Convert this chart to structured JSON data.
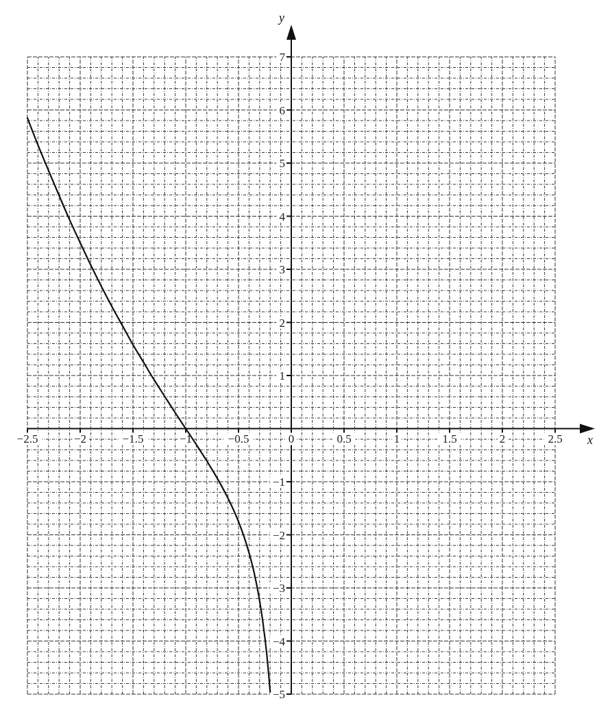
{
  "chart_data": {
    "type": "line",
    "xlabel": "x",
    "ylabel": "y",
    "xlim": [
      -2.5,
      2.5
    ],
    "ylim": [
      -5,
      7
    ],
    "xticks": [
      -2.5,
      -2,
      -1.5,
      -1,
      -0.5,
      0,
      0.5,
      1,
      1.5,
      2,
      2.5
    ],
    "yticks": [
      -5,
      -4,
      -3,
      -2,
      -1,
      1,
      2,
      3,
      4,
      5,
      6,
      7
    ],
    "grid": true,
    "series": [
      {
        "color": "#111111",
        "x": [
          -2.5,
          -2.4,
          -2.3,
          -2.2,
          -2.1,
          -2.0,
          -1.9,
          -1.8,
          -1.7,
          -1.6,
          -1.5,
          -1.4,
          -1.3,
          -1.2,
          -1.1,
          -1.0,
          -0.9,
          -0.8,
          -0.7,
          -0.6,
          -0.5,
          -0.45,
          -0.4,
          -0.35,
          -0.3,
          -0.27,
          -0.25,
          -0.23,
          -0.21,
          -0.2
        ],
        "values": [
          5.85,
          5.34,
          4.86,
          4.39,
          3.93,
          3.5,
          3.08,
          2.68,
          2.3,
          1.94,
          1.58,
          1.25,
          0.92,
          0.61,
          0.3,
          0,
          -0.3,
          -0.61,
          -0.94,
          -1.31,
          -1.75,
          -2.02,
          -2.34,
          -2.73,
          -3.24,
          -3.63,
          -3.94,
          -4.29,
          -4.72,
          -4.96
        ]
      }
    ]
  }
}
